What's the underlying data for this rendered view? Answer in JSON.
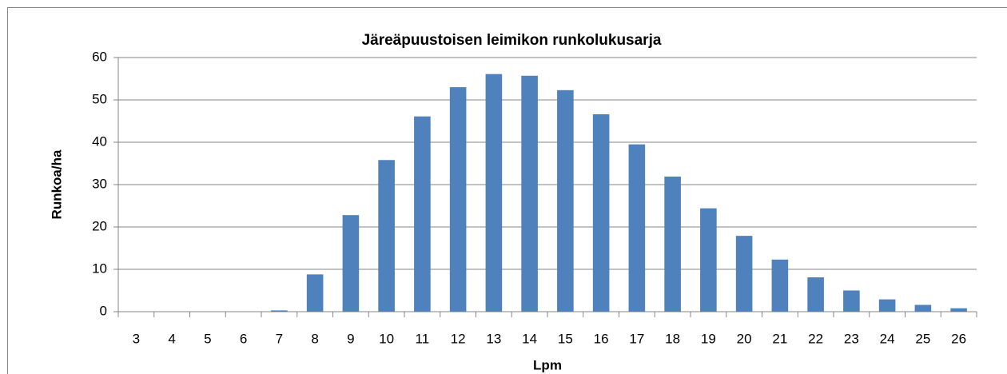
{
  "chart_data": {
    "type": "bar",
    "title": "Järeäpuustoisen leimikon runkolukusarja",
    "x_label": "Lpm",
    "y_label": "Runkoa/ha",
    "categories": [
      "3",
      "4",
      "5",
      "6",
      "7",
      "8",
      "9",
      "10",
      "11",
      "12",
      "13",
      "14",
      "15",
      "16",
      "17",
      "18",
      "19",
      "20",
      "21",
      "22",
      "23",
      "24",
      "25",
      "26"
    ],
    "values": [
      0,
      0,
      0,
      0,
      0.3,
      8.8,
      22.8,
      35.8,
      46.1,
      53,
      56.1,
      55.7,
      52.3,
      46.6,
      39.5,
      31.9,
      24.4,
      17.9,
      12.3,
      8.1,
      5.0,
      2.9,
      1.6,
      0.8
    ],
    "color": "#4f81bd",
    "ylim": [
      0,
      60
    ],
    "yticks": [
      0,
      10,
      20,
      30,
      40,
      50,
      60
    ],
    "grid": true
  }
}
